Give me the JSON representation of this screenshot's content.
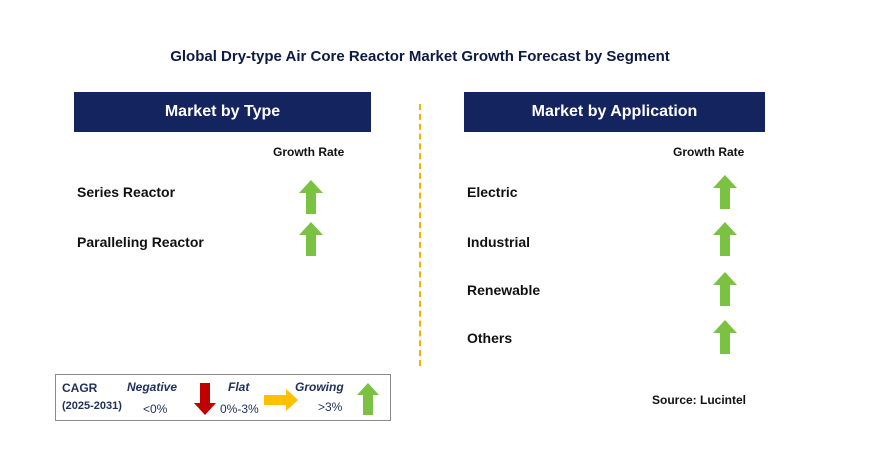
{
  "title": "Global Dry-type Air Core Reactor Market Growth Forecast by Segment",
  "left_panel": {
    "header": "Market by Type",
    "column_label": "Growth Rate",
    "rows": [
      {
        "label": "Series Reactor",
        "trend": "growing"
      },
      {
        "label": "Paralleling Reactor",
        "trend": "growing"
      }
    ]
  },
  "right_panel": {
    "header": "Market by Application",
    "column_label": "Growth Rate",
    "rows": [
      {
        "label": "Electric",
        "trend": "growing"
      },
      {
        "label": "Industrial",
        "trend": "growing"
      },
      {
        "label": "Renewable",
        "trend": "growing"
      },
      {
        "label": "Others",
        "trend": "growing"
      }
    ]
  },
  "legend": {
    "cagr_label": "CAGR",
    "period": "(2025-2031)",
    "negative_label": "Negative",
    "negative_range": "<0%",
    "flat_label": "Flat",
    "flat_range": "0%-3%",
    "growing_label": "Growing",
    "growing_range": ">3%"
  },
  "source": "Source: Lucintel",
  "colors": {
    "header_bg": "#13245f",
    "up_arrow": "#7cc242",
    "down_arrow": "#c00000",
    "flat_arrow": "#ffc000",
    "divider": "#f0b400"
  },
  "icons": {
    "growing": "up-arrow-icon",
    "negative": "down-arrow-icon",
    "flat": "right-arrow-icon"
  }
}
